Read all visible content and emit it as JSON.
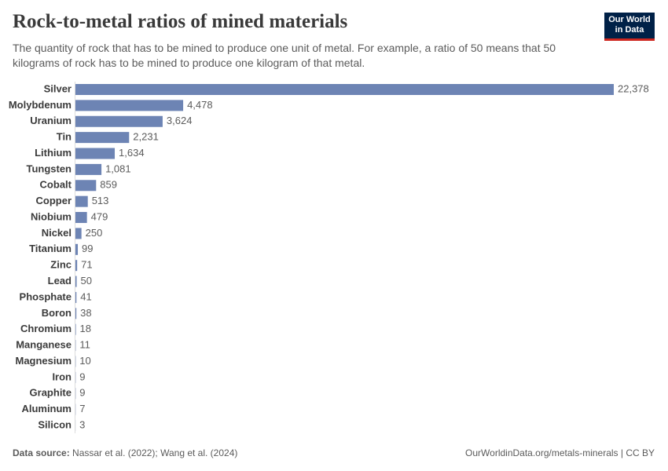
{
  "chart_data": {
    "type": "bar",
    "orientation": "horizontal",
    "title": "Rock-to-metal ratios of mined materials",
    "subtitle": "The quantity of rock that has to be mined to produce one unit of metal. For example, a ratio of 50 means that 50 kilograms of rock has to be mined to produce one kilogram of that metal.",
    "categories": [
      "Silver",
      "Molybdenum",
      "Uranium",
      "Tin",
      "Lithium",
      "Tungsten",
      "Cobalt",
      "Copper",
      "Niobium",
      "Nickel",
      "Titanium",
      "Zinc",
      "Lead",
      "Phosphate",
      "Boron",
      "Chromium",
      "Manganese",
      "Magnesium",
      "Iron",
      "Graphite",
      "Aluminum",
      "Silicon"
    ],
    "values": [
      22378,
      4478,
      3624,
      2231,
      1634,
      1081,
      859,
      513,
      479,
      250,
      99,
      71,
      50,
      41,
      38,
      18,
      11,
      10,
      9,
      9,
      7,
      3
    ],
    "value_labels": [
      "22,378",
      "4,478",
      "3,624",
      "2,231",
      "1,634",
      "1,081",
      "859",
      "513",
      "479",
      "250",
      "99",
      "71",
      "50",
      "41",
      "38",
      "18",
      "11",
      "10",
      "9",
      "9",
      "7",
      "3"
    ],
    "color": "#6d84b4",
    "source_label": "Data source:",
    "source": "Nassar et al. (2022); Wang et al. (2024)",
    "url": "OurWorldinData.org/metals-minerals | CC BY",
    "logo": [
      "Our World",
      "in Data"
    ]
  }
}
